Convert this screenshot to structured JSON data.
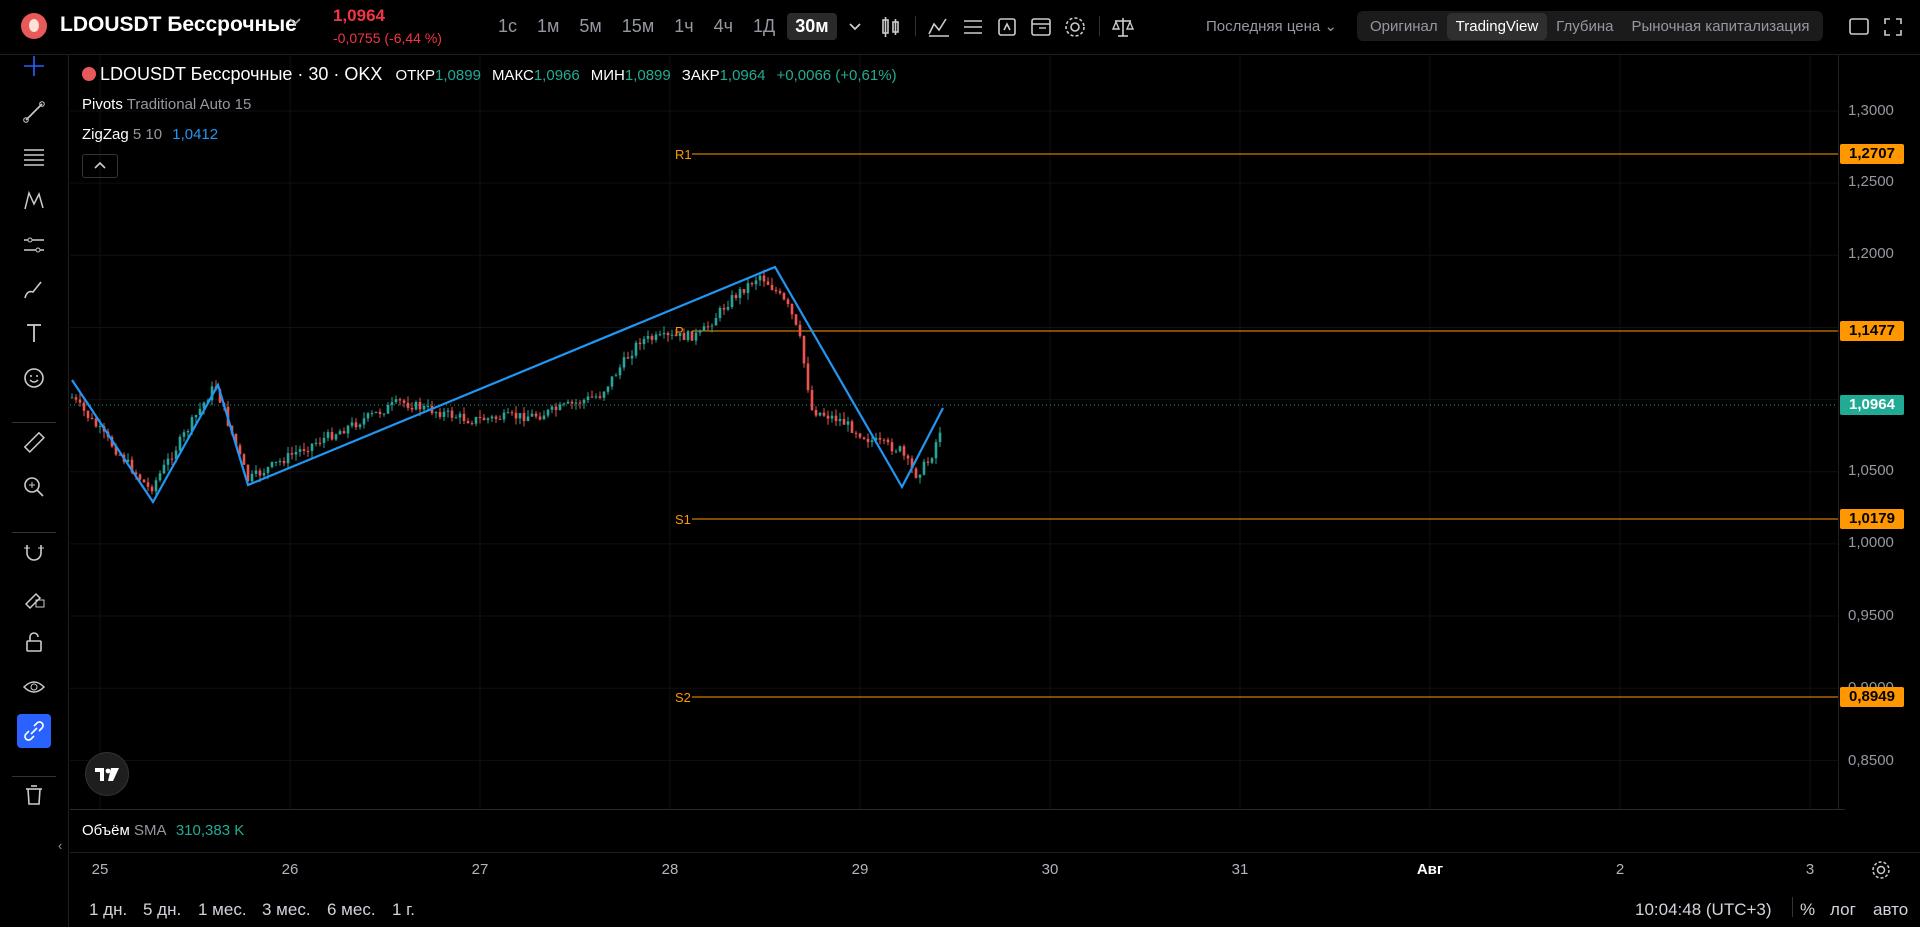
{
  "header": {
    "symbol": "LDOUSDT Бессрочные",
    "price": "1,0964",
    "change": "-0,0755 (-6,44 %)",
    "intervals": [
      "1с",
      "1м",
      "5м",
      "15м",
      "1ч",
      "4ч",
      "1Д",
      "30м"
    ],
    "active_interval": "30м",
    "price_type": "Последняя цена",
    "views": [
      "Оригинал",
      "TradingView",
      "Глубина",
      "Рыночная капитализация"
    ],
    "active_view": "TradingView"
  },
  "legend": {
    "title": "LDOUSDT Бессрочные · 30 · OKX",
    "open_label": "ОТКР",
    "open": "1,0899",
    "high_label": "МАКС",
    "high": "1,0966",
    "low_label": "МИН",
    "low": "1,0899",
    "close_label": "ЗАКР",
    "close": "1,0964",
    "delta": "+0,0066 (+0,61%)",
    "pivots_name": "Pivots",
    "pivots_params": "Traditional Auto 15",
    "zigzag_name": "ZigZag",
    "zigzag_params": "5 10",
    "zigzag_value": "1,0412"
  },
  "pivot_levels": [
    {
      "name": "R1",
      "value": "1,2707"
    },
    {
      "name": "P",
      "value": "1,1477"
    },
    {
      "name": "S1",
      "value": "1,0179"
    },
    {
      "name": "S2",
      "value": "0,8949"
    }
  ],
  "last_price_badge": "1,0964",
  "price_scale": [
    "1,3000",
    "1,2500",
    "1,2000",
    "1,0500",
    "1,0000",
    "0,9500",
    "0,9000",
    "0,8500"
  ],
  "time_axis": [
    "25",
    "26",
    "27",
    "28",
    "29",
    "30",
    "31",
    "Авг",
    "2",
    "3"
  ],
  "volume_legend": {
    "name": "Объём",
    "sma": "SMA",
    "value": "310,383 K"
  },
  "bottom": {
    "ranges": [
      "1 дн.",
      "5 дн.",
      "1 мес.",
      "3 мес.",
      "6 мес.",
      "1 г."
    ],
    "clock": "10:04:48 (UTC+3)",
    "percent": "%",
    "log": "лог",
    "auto": "авто"
  },
  "colors": {
    "up": "#26a69a",
    "down": "#ef5350",
    "pivot": "#ff9800",
    "zigzag": "#2196f3",
    "accent": "#2962ff",
    "last": "#22ab94"
  },
  "zigzag_points": [
    1.086,
    1.03,
    1.096,
    1.042,
    1.193,
    1.042,
    1.101
  ],
  "ohlc_series": "candles approx: start 1.086, trough 1.030 (25 eve), peak 1.096, 1.042 (26), rise to 1.193 (28 mid), drop to 1.042 (29), recover to 1.0964"
}
